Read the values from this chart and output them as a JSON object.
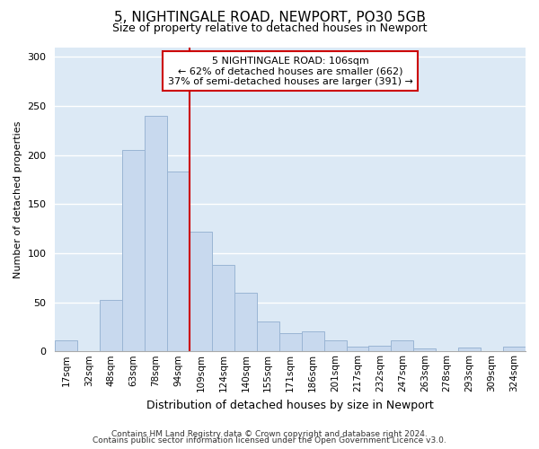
{
  "title1": "5, NIGHTINGALE ROAD, NEWPORT, PO30 5GB",
  "title2": "Size of property relative to detached houses in Newport",
  "xlabel": "Distribution of detached houses by size in Newport",
  "ylabel": "Number of detached properties",
  "categories": [
    "17sqm",
    "32sqm",
    "48sqm",
    "63sqm",
    "78sqm",
    "94sqm",
    "109sqm",
    "124sqm",
    "140sqm",
    "155sqm",
    "171sqm",
    "186sqm",
    "201sqm",
    "217sqm",
    "232sqm",
    "247sqm",
    "263sqm",
    "278sqm",
    "293sqm",
    "309sqm",
    "324sqm"
  ],
  "values": [
    11,
    0,
    52,
    205,
    240,
    183,
    122,
    88,
    60,
    30,
    19,
    20,
    11,
    5,
    6,
    11,
    3,
    0,
    4,
    0,
    5
  ],
  "bar_color": "#c8d9ee",
  "bar_edge_color": "#9ab5d4",
  "vline_x_index": 5.5,
  "vline_color": "#cc0000",
  "annotation_text": "5 NIGHTINGALE ROAD: 106sqm\n← 62% of detached houses are smaller (662)\n37% of semi-detached houses are larger (391) →",
  "annotation_box_color": "#ffffff",
  "annotation_box_edge_color": "#cc0000",
  "footer1": "Contains HM Land Registry data © Crown copyright and database right 2024.",
  "footer2": "Contains public sector information licensed under the Open Government Licence v3.0.",
  "ylim": [
    0,
    310
  ],
  "yticks": [
    0,
    50,
    100,
    150,
    200,
    250,
    300
  ],
  "fig_bg_color": "#ffffff",
  "plot_bg_color": "#dce9f5",
  "grid_color": "#ffffff",
  "title1_fontsize": 11,
  "title2_fontsize": 9,
  "xlabel_fontsize": 9,
  "ylabel_fontsize": 8,
  "xtick_fontsize": 7.5,
  "ytick_fontsize": 8,
  "footer_fontsize": 6.5,
  "annot_fontsize": 8
}
